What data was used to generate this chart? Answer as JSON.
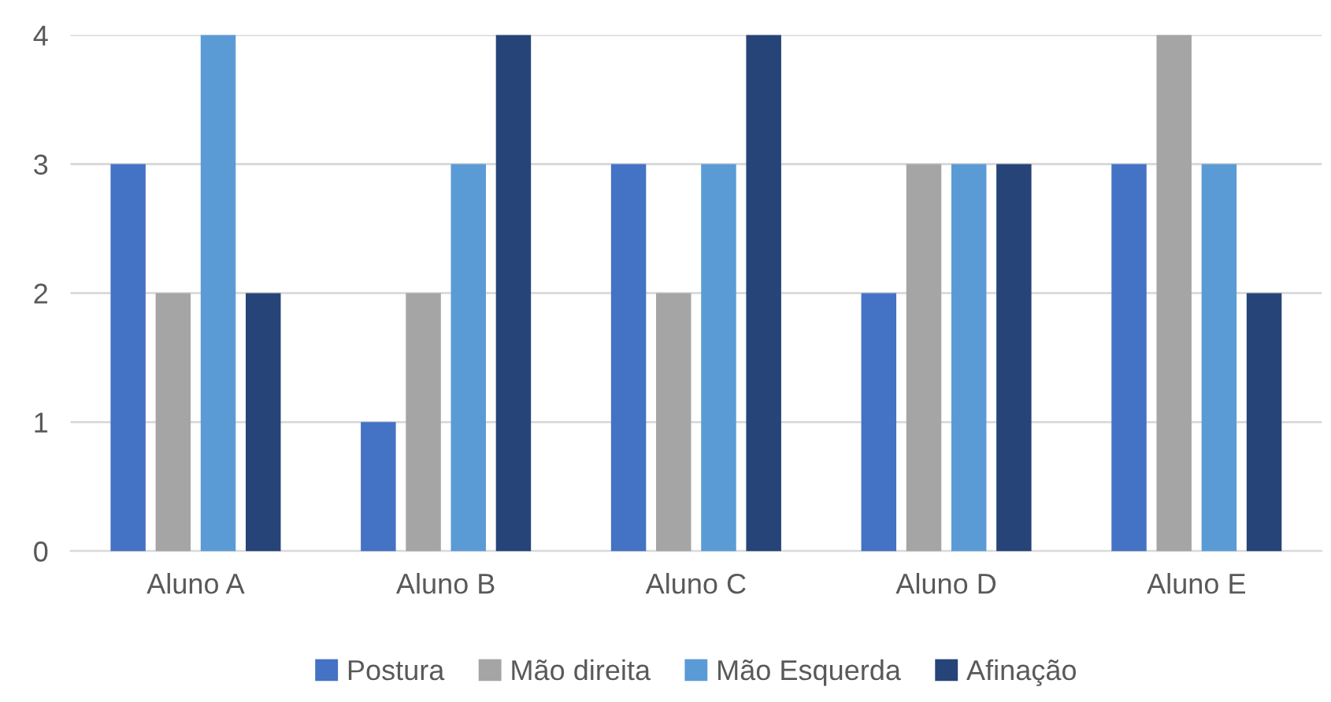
{
  "chart_data": {
    "type": "bar",
    "categories": [
      "Aluno A",
      "Aluno B",
      "Aluno C",
      "Aluno D",
      "Aluno E"
    ],
    "series": [
      {
        "name": "Postura",
        "color": "#4472c4",
        "values": [
          3,
          1,
          3,
          2,
          3
        ]
      },
      {
        "name": "Mão direita",
        "color": "#a5a5a5",
        "values": [
          2,
          2,
          2,
          3,
          4
        ]
      },
      {
        "name": "Mão Esquerda",
        "color": "#5b9bd5",
        "values": [
          4,
          3,
          3,
          3,
          3
        ]
      },
      {
        "name": "Afinação",
        "color": "#264478",
        "values": [
          2,
          4,
          4,
          3,
          2
        ]
      }
    ],
    "ylim": [
      0,
      4
    ],
    "yticks": [
      0,
      1,
      2,
      3,
      4
    ],
    "grid": "y",
    "legend": "bottom"
  }
}
